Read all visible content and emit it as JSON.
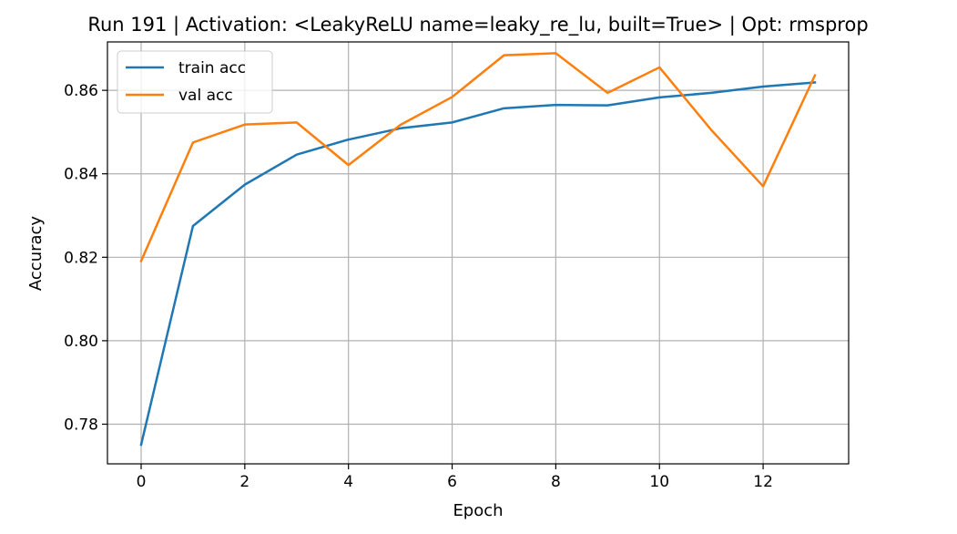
{
  "chart_data": {
    "type": "line",
    "title": "Run 191 | Activation: <LeakyReLU name=leaky_re_lu, built=True> | Opt: rmsprop",
    "xlabel": "Epoch",
    "ylabel": "Accuracy",
    "xlim": [
      -0.65,
      13.65
    ],
    "ylim": [
      0.7705,
      0.8716
    ],
    "xticks": [
      0,
      2,
      4,
      6,
      8,
      10,
      12
    ],
    "xtick_labels": [
      "0",
      "2",
      "4",
      "6",
      "8",
      "10",
      "12"
    ],
    "yticks": [
      0.78,
      0.8,
      0.82,
      0.84,
      0.86
    ],
    "ytick_labels": [
      "0.78",
      "0.80",
      "0.82",
      "0.84",
      "0.86"
    ],
    "grid": true,
    "legend_position": "top-left",
    "x": [
      0,
      1,
      2,
      3,
      4,
      5,
      6,
      7,
      8,
      9,
      10,
      11,
      12,
      13
    ],
    "series": [
      {
        "name": "train acc",
        "color": "#1f77b4",
        "values": [
          0.7751,
          0.8275,
          0.8374,
          0.8446,
          0.8482,
          0.8509,
          0.8523,
          0.8557,
          0.8565,
          0.8564,
          0.8583,
          0.8594,
          0.8609,
          0.8619
        ]
      },
      {
        "name": "val acc",
        "color": "#ff7f0e",
        "values": [
          0.8191,
          0.8475,
          0.8518,
          0.8523,
          0.8421,
          0.8517,
          0.8584,
          0.8684,
          0.8689,
          0.8594,
          0.8655,
          0.8505,
          0.837,
          0.8636
        ]
      }
    ]
  }
}
